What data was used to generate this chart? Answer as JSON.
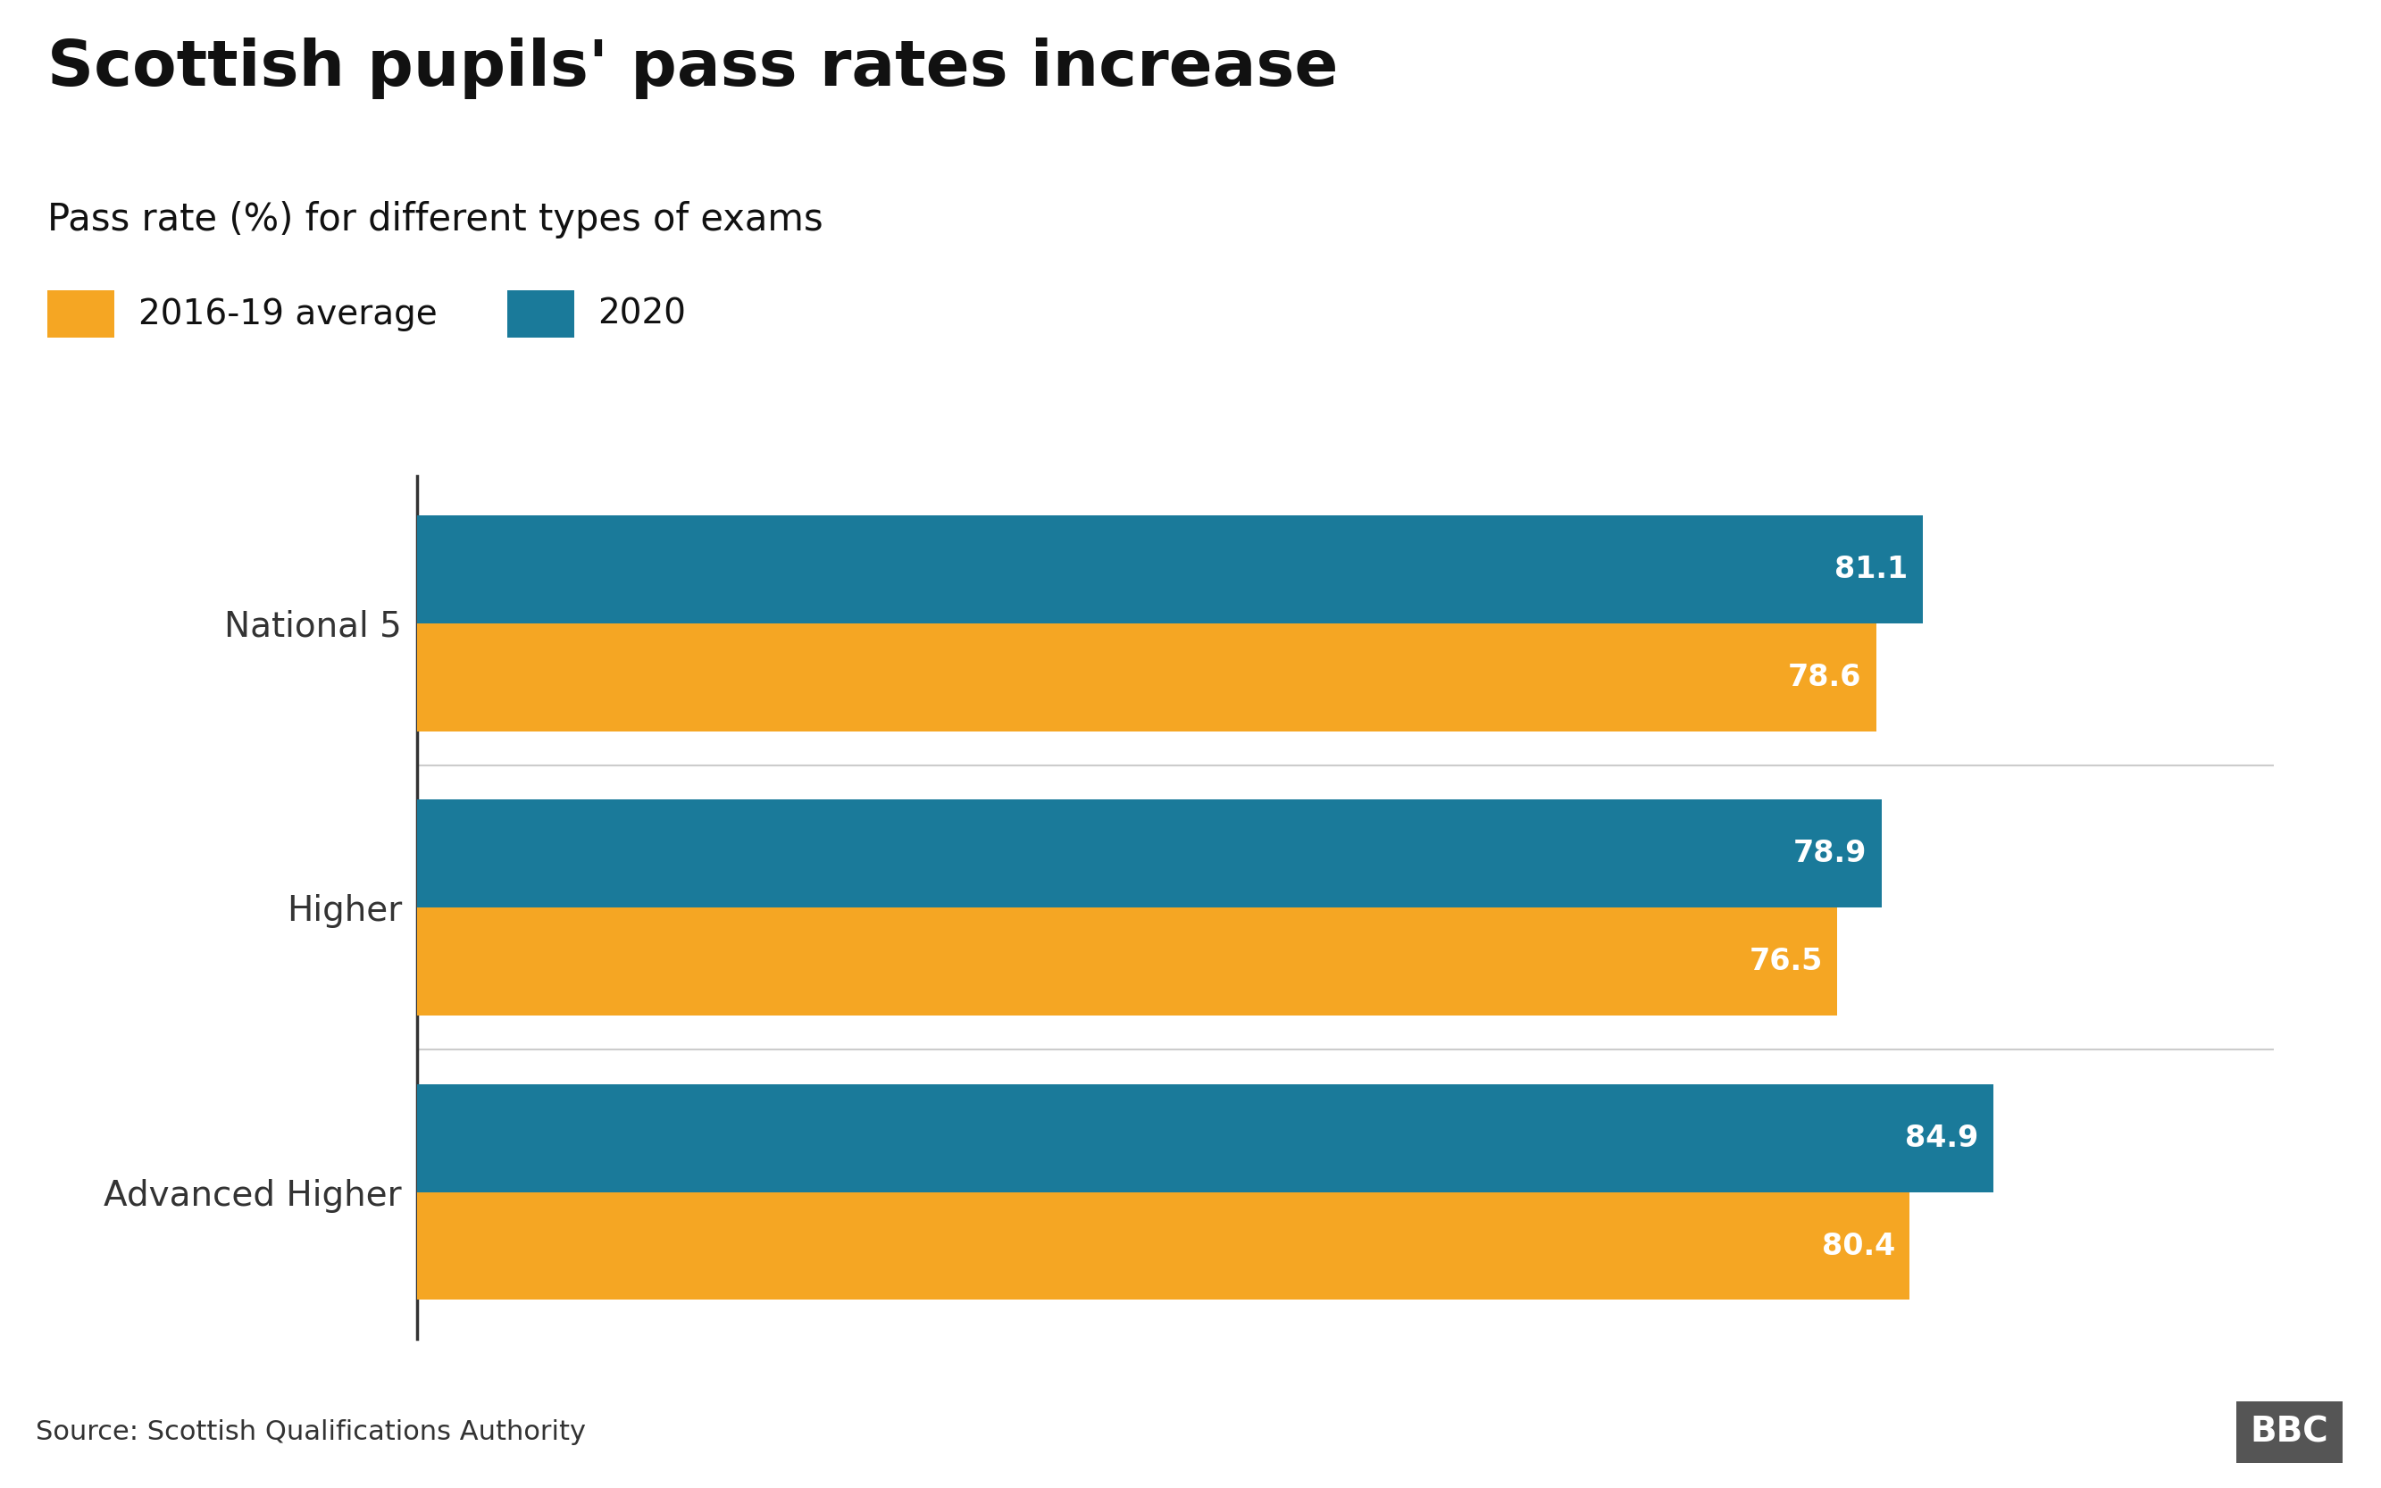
{
  "title": "Scottish pupils' pass rates increase",
  "subtitle": "Pass rate (%) for different types of exams",
  "categories": [
    "National 5",
    "Higher",
    "Advanced Higher"
  ],
  "series": [
    {
      "label": "2016-19 average",
      "color": "#F5A623",
      "values": [
        78.6,
        76.5,
        80.4
      ]
    },
    {
      "label": "2020",
      "color": "#1A7A9A",
      "values": [
        81.1,
        78.9,
        84.9
      ]
    }
  ],
  "xlim": [
    0,
    100
  ],
  "bar_height": 0.38,
  "value_label_color": "#ffffff",
  "value_label_fontsize": 24,
  "title_fontsize": 52,
  "subtitle_fontsize": 30,
  "legend_fontsize": 28,
  "ytick_fontsize": 28,
  "source_text": "Source: Scottish Qualifications Authority",
  "source_fontsize": 22,
  "background_color": "#ffffff",
  "footer_background": "#d0d0d0",
  "bbc_text": "BBC",
  "axis_line_color": "#333333",
  "grid_color": "#cccccc"
}
